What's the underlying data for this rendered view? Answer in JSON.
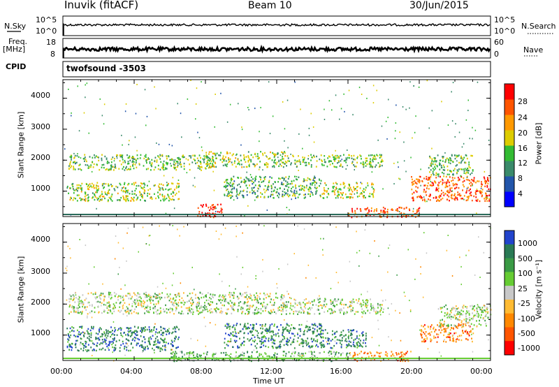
{
  "header": {
    "station": "Inuvik (fitACF)",
    "beam": "Beam 10",
    "date": "30/Jun/2015"
  },
  "left_labels": {
    "nsky": "N.Sky",
    "freq": "Freq.",
    "freq_unit": "[MHz]",
    "cpid": "CPID"
  },
  "right_labels": {
    "nsearch": "N.Search",
    "nave": "Nave"
  },
  "cpid_text": "twofsound -3503",
  "chart_data": [
    {
      "type": "line",
      "panel": "noise",
      "left_ticks": [
        "10^5",
        "10^0"
      ],
      "right_ticks": [
        "10^5",
        "10^0"
      ],
      "x_range_hours": [
        0,
        24
      ],
      "series": [
        {
          "name": "N.Sky",
          "approx_level_fraction": 0.55
        }
      ]
    },
    {
      "type": "line",
      "panel": "frequency",
      "left_ticks": [
        "18",
        "8"
      ],
      "right_ticks": [
        "60",
        "0"
      ],
      "x_range_hours": [
        0,
        24
      ],
      "series": [
        {
          "name": "Freq.",
          "approx_level_fraction": 0.45
        }
      ]
    },
    {
      "type": "heatmap",
      "panel": "power",
      "ylabel": "Slant Range [km]",
      "yticks": [
        "1000",
        "2000",
        "3000",
        "4000"
      ],
      "ylim": [
        180,
        4600
      ],
      "colorbar_label": "Power [dB]",
      "colorbar_ticks": [
        "4",
        "8",
        "12",
        "16",
        "20",
        "24",
        "28"
      ],
      "colorbar_colors": [
        "#0000ff",
        "#2255aa",
        "#3a8a6a",
        "#33bb33",
        "#ddcc00",
        "#ff9900",
        "#ff5500",
        "#ff0000"
      ],
      "blobs": [
        {
          "t": [
            0.3,
            8.5
          ],
          "r": [
            1700,
            2200
          ],
          "level": 0.45
        },
        {
          "t": [
            8.0,
            12.5
          ],
          "r": [
            1800,
            2300
          ],
          "level": 0.5
        },
        {
          "t": [
            12.5,
            18.0
          ],
          "r": [
            1800,
            2200
          ],
          "level": 0.45
        },
        {
          "t": [
            0.2,
            6.5
          ],
          "r": [
            700,
            1300
          ],
          "level": 0.5
        },
        {
          "t": [
            9.0,
            14.5
          ],
          "r": [
            800,
            1500
          ],
          "level": 0.4
        },
        {
          "t": [
            14.5,
            17.5
          ],
          "r": [
            800,
            1300
          ],
          "level": 0.55
        },
        {
          "t": [
            7.5,
            9.0
          ],
          "r": [
            180,
            600
          ],
          "level": 0.95
        },
        {
          "t": [
            16.0,
            20.0
          ],
          "r": [
            180,
            500
          ],
          "level": 0.85
        },
        {
          "t": [
            19.5,
            24.0
          ],
          "r": [
            700,
            1500
          ],
          "level": 0.8
        },
        {
          "t": [
            20.5,
            23.0
          ],
          "r": [
            1500,
            2200
          ],
          "level": 0.45
        }
      ]
    },
    {
      "type": "heatmap",
      "panel": "velocity",
      "ylabel": "Slant Range [km]",
      "yticks": [
        "1000",
        "2000",
        "3000",
        "4000"
      ],
      "ylim": [
        180,
        4600
      ],
      "colorbar_label": "Velocity [m s⁻¹]",
      "colorbar_ticks": [
        "1000",
        "500",
        "100",
        "25",
        "-25",
        "-100",
        "-500",
        "-1000"
      ],
      "colorbar_colors": [
        "#2244cc",
        "#2a7a55",
        "#3a9a45",
        "#66cc33",
        "#c8c8c8",
        "#ffbb33",
        "#ff8800",
        "#ff5500",
        "#ff0000"
      ],
      "blobs": [
        {
          "t": [
            0.3,
            12.5
          ],
          "r": [
            1700,
            2400
          ],
          "level": 0.45
        },
        {
          "t": [
            12.5,
            18.0
          ],
          "r": [
            1700,
            2200
          ],
          "level": 0.45
        },
        {
          "t": [
            0.2,
            6.5
          ],
          "r": [
            500,
            1300
          ],
          "level": 0.18
        },
        {
          "t": [
            9.0,
            14.5
          ],
          "r": [
            600,
            1400
          ],
          "level": 0.2
        },
        {
          "t": [
            14.5,
            17.0
          ],
          "r": [
            600,
            1200
          ],
          "level": 0.2
        },
        {
          "t": [
            6.0,
            16.0
          ],
          "r": [
            180,
            500
          ],
          "level": 0.33
        },
        {
          "t": [
            16.0,
            19.5
          ],
          "r": [
            180,
            500
          ],
          "level": 0.72
        },
        {
          "t": [
            20.0,
            23.0
          ],
          "r": [
            800,
            1400
          ],
          "level": 0.75
        },
        {
          "t": [
            21.0,
            24.0
          ],
          "r": [
            1300,
            2000
          ],
          "level": 0.45
        }
      ]
    }
  ],
  "x_axis": {
    "ticks": [
      "00:00",
      "04:00",
      "08:00",
      "12:00",
      "16:00",
      "20:00",
      "00:00"
    ],
    "label": "Time UT"
  }
}
